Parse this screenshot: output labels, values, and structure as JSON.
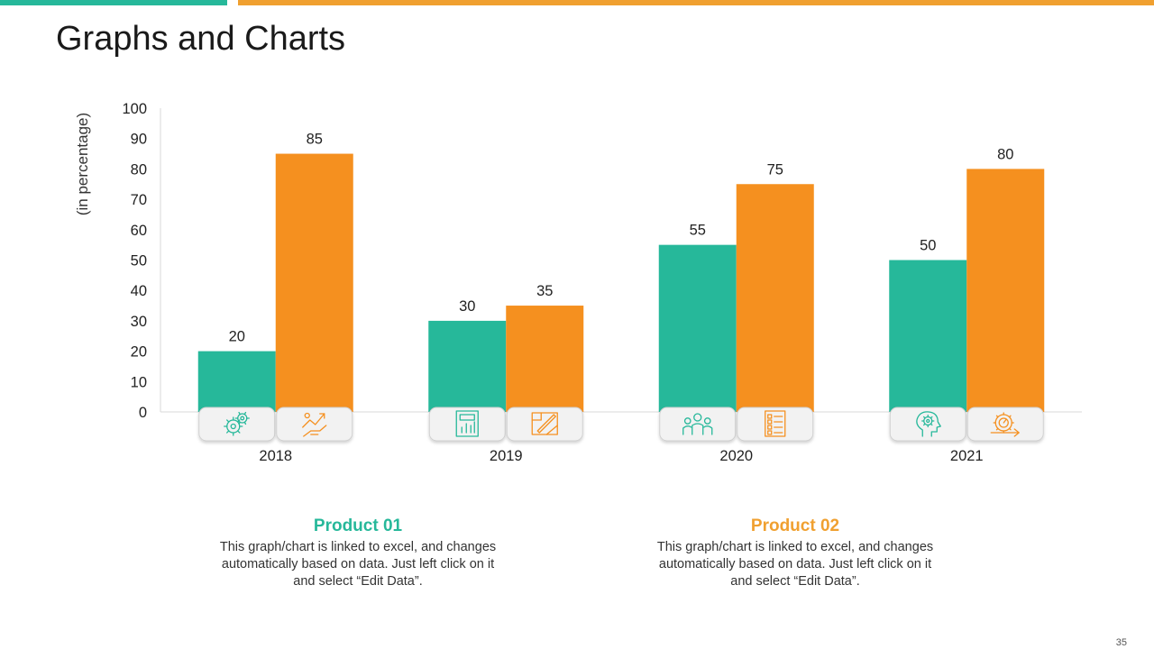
{
  "slide": {
    "title": "Graphs and Charts",
    "page_number": "35"
  },
  "colors": {
    "product1": "#26b89a",
    "product2": "#f5901f",
    "accent_teal": "#26b89a",
    "accent_orange": "#f0a030"
  },
  "products": [
    {
      "title": "Product 01",
      "description": "This graph/chart is linked to excel, and changes automatically based on data. Just left click on it and select “Edit Data”."
    },
    {
      "title": "Product 02",
      "description": "This graph/chart is linked to excel, and changes automatically based on data. Just left click on it and select “Edit Data”."
    }
  ],
  "chart_data": {
    "type": "bar",
    "title": "",
    "xlabel": "",
    "ylabel": "(in percentage)",
    "ylim": [
      0,
      100
    ],
    "yticks": [
      0,
      10,
      20,
      30,
      40,
      50,
      60,
      70,
      80,
      90,
      100
    ],
    "categories": [
      "2018",
      "2019",
      "2020",
      "2021"
    ],
    "series": [
      {
        "name": "Product 01",
        "values": [
          20,
          30,
          55,
          50
        ]
      },
      {
        "name": "Product 02",
        "values": [
          85,
          35,
          75,
          80
        ]
      }
    ],
    "icons": [
      [
        "gears-icon",
        "growth-hand-icon"
      ],
      [
        "report-chart-icon",
        "blueprint-pencil-icon"
      ],
      [
        "team-people-icon",
        "checklist-icon"
      ],
      [
        "head-gear-icon",
        "speedometer-arrow-icon"
      ]
    ],
    "grid": false,
    "legend": "none"
  }
}
